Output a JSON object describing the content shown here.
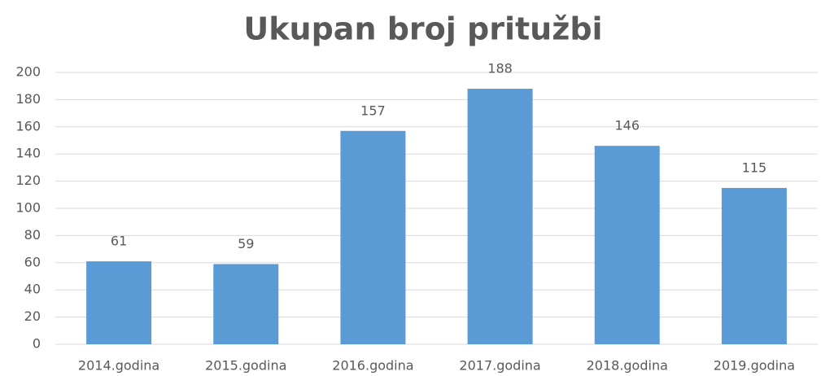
{
  "chart_data": {
    "type": "bar",
    "title": "Ukupan broj pritužbi",
    "categories": [
      "2014.godina",
      "2015.godina",
      "2016.godina",
      "2017.godina",
      "2018.godina",
      "2019.godina"
    ],
    "values": [
      61,
      59,
      157,
      188,
      146,
      115
    ],
    "color": "#5b9bd5",
    "ylim": [
      0,
      200
    ],
    "yticks": [
      0,
      20,
      40,
      60,
      80,
      100,
      120,
      140,
      160,
      180,
      200
    ],
    "grid": true
  }
}
